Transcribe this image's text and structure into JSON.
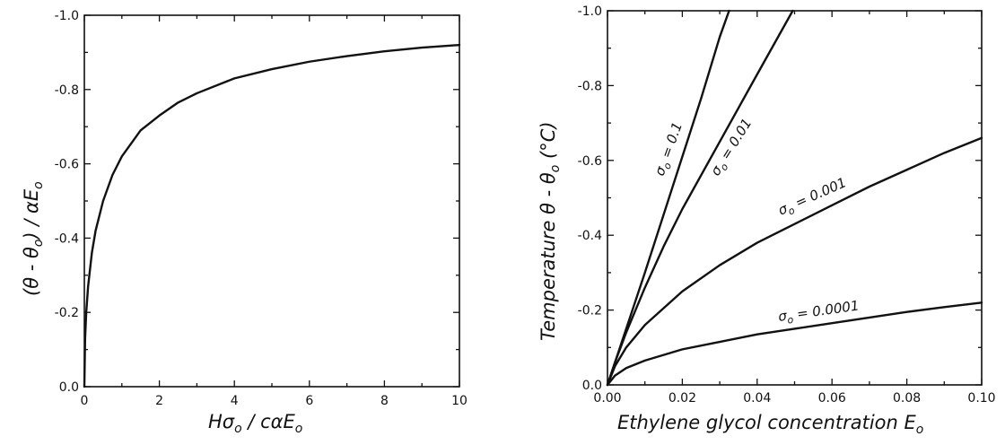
{
  "chart_data": [
    {
      "type": "line",
      "xlabel": "Hσ₀ / cαE₀",
      "ylabel": "(θ − θ₀) / αE₀",
      "xlim": [
        0,
        10
      ],
      "ylim": [
        0,
        -1.0
      ],
      "x_ticks": [
        "0",
        "2",
        "4",
        "6",
        "8",
        "10"
      ],
      "y_ticks": [
        "0.0",
        "-0.2",
        "-0.4",
        "-0.6",
        "-0.8",
        "-1.0"
      ],
      "grid": false,
      "series": [
        {
          "x": [
            0,
            0.02,
            0.05,
            0.1,
            0.2,
            0.3,
            0.5,
            0.75,
            1.0,
            1.5,
            2.0,
            2.5,
            3.0,
            4.0,
            5.0,
            6.0,
            7.0,
            8.0,
            9.0,
            10.0
          ],
          "y": [
            0,
            -0.13,
            -0.2,
            -0.27,
            -0.36,
            -0.42,
            -0.5,
            -0.57,
            -0.62,
            -0.69,
            -0.73,
            -0.765,
            -0.79,
            -0.83,
            -0.855,
            -0.875,
            -0.89,
            -0.903,
            -0.913,
            -0.92
          ]
        }
      ]
    },
    {
      "type": "line",
      "xlabel": "Ethylene glycol concentration E₀",
      "ylabel": "Temperature θ − θ₀ (°C)",
      "xlim": [
        0,
        0.1
      ],
      "ylim": [
        0,
        -1.0
      ],
      "x_ticks": [
        "0.00",
        "0.02",
        "0.04",
        "0.06",
        "0.08",
        "0.10"
      ],
      "y_ticks": [
        "0.0",
        "-0.2",
        "-0.4",
        "-0.6",
        "-0.8",
        "-1.0"
      ],
      "grid": false,
      "series": [
        {
          "name": "σ₀ = 0.1",
          "x": [
            0,
            0.002,
            0.005,
            0.01,
            0.015,
            0.02,
            0.025,
            0.03,
            0.0325
          ],
          "y": [
            0,
            -0.06,
            -0.15,
            -0.3,
            -0.455,
            -0.61,
            -0.765,
            -0.93,
            -1.0
          ]
        },
        {
          "name": "σ₀ = 0.01",
          "x": [
            0,
            0.002,
            0.005,
            0.01,
            0.015,
            0.02,
            0.03,
            0.04,
            0.0495
          ],
          "y": [
            0,
            -0.06,
            -0.14,
            -0.26,
            -0.37,
            -0.47,
            -0.65,
            -0.83,
            -1.0
          ]
        },
        {
          "name": "σ₀ = 0.001",
          "x": [
            0,
            0.002,
            0.005,
            0.01,
            0.02,
            0.03,
            0.04,
            0.05,
            0.06,
            0.07,
            0.08,
            0.09,
            0.1
          ],
          "y": [
            0,
            -0.05,
            -0.1,
            -0.16,
            -0.25,
            -0.32,
            -0.38,
            -0.43,
            -0.48,
            -0.53,
            -0.575,
            -0.62,
            -0.66
          ]
        },
        {
          "name": "σ₀ = 0.0001",
          "x": [
            0,
            0.002,
            0.005,
            0.01,
            0.02,
            0.03,
            0.04,
            0.05,
            0.06,
            0.07,
            0.08,
            0.09,
            0.1
          ],
          "y": [
            0,
            -0.025,
            -0.045,
            -0.065,
            -0.095,
            -0.115,
            -0.135,
            -0.15,
            -0.165,
            -0.18,
            -0.195,
            -0.208,
            -0.22
          ]
        }
      ],
      "curve_labels": [
        {
          "base": "σ",
          "sub": "o",
          "rest": " = 0.1"
        },
        {
          "base": "σ",
          "sub": "o",
          "rest": " = 0.01"
        },
        {
          "base": "σ",
          "sub": "o",
          "rest": " = 0.001"
        },
        {
          "base": "σ",
          "sub": "o",
          "rest": " = 0.0001"
        }
      ]
    }
  ],
  "axis_text": {
    "left_x": {
      "H": "H",
      "sigma": "σ",
      "sub1": "o",
      "mid": " / c",
      "alpha": "α",
      "E": "E",
      "sub2": "o"
    },
    "left_y": {
      "open": "(",
      "theta": "θ",
      "minus": " - ",
      "theta0": "θ",
      "sub0": "o",
      "close": ") / ",
      "alpha": "α",
      "E": "E",
      "subE": "o"
    },
    "right_x": {
      "text": "Ethylene glycol concentration ",
      "E": "E",
      "sub": "o"
    },
    "right_y": {
      "text": "Temperature  θ - θ",
      "sub": "o",
      "unit": "  (°C)"
    }
  }
}
